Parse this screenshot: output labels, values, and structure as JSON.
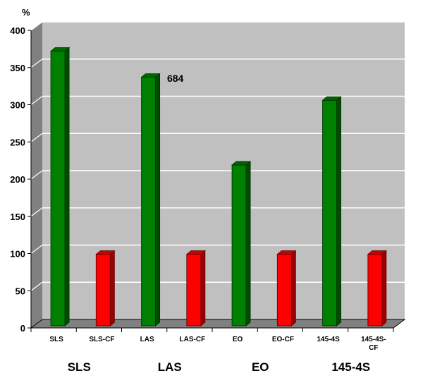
{
  "chart_data": {
    "type": "bar",
    "y_unit_label": "%",
    "ylim": [
      0,
      400
    ],
    "yticks": [
      0,
      50,
      100,
      150,
      200,
      250,
      300,
      350,
      400
    ],
    "grid": true,
    "categories": [
      "SLS",
      "SLS-CF",
      "LAS",
      "LAS-CF",
      "EO",
      "EO-CF",
      "145-4S",
      "145-4S-CF"
    ],
    "category_labels": [
      "SLS",
      "SLS-CF",
      "LAS",
      "LAS-CF",
      "EO",
      "EO-CF",
      "145-4S",
      "145-4S-\nCF"
    ],
    "values": [
      372,
      99,
      337,
      99,
      219,
      99,
      306,
      99
    ],
    "bar_colors": [
      "#008000",
      "#ff0000",
      "#008000",
      "#ff0000",
      "#008000",
      "#ff0000",
      "#008000",
      "#ff0000"
    ],
    "groups": [
      "SLS",
      "LAS",
      "EO",
      "145-4S"
    ],
    "annotations": [
      {
        "text": "684",
        "near_category": "LAS"
      }
    ],
    "legend": "none"
  }
}
